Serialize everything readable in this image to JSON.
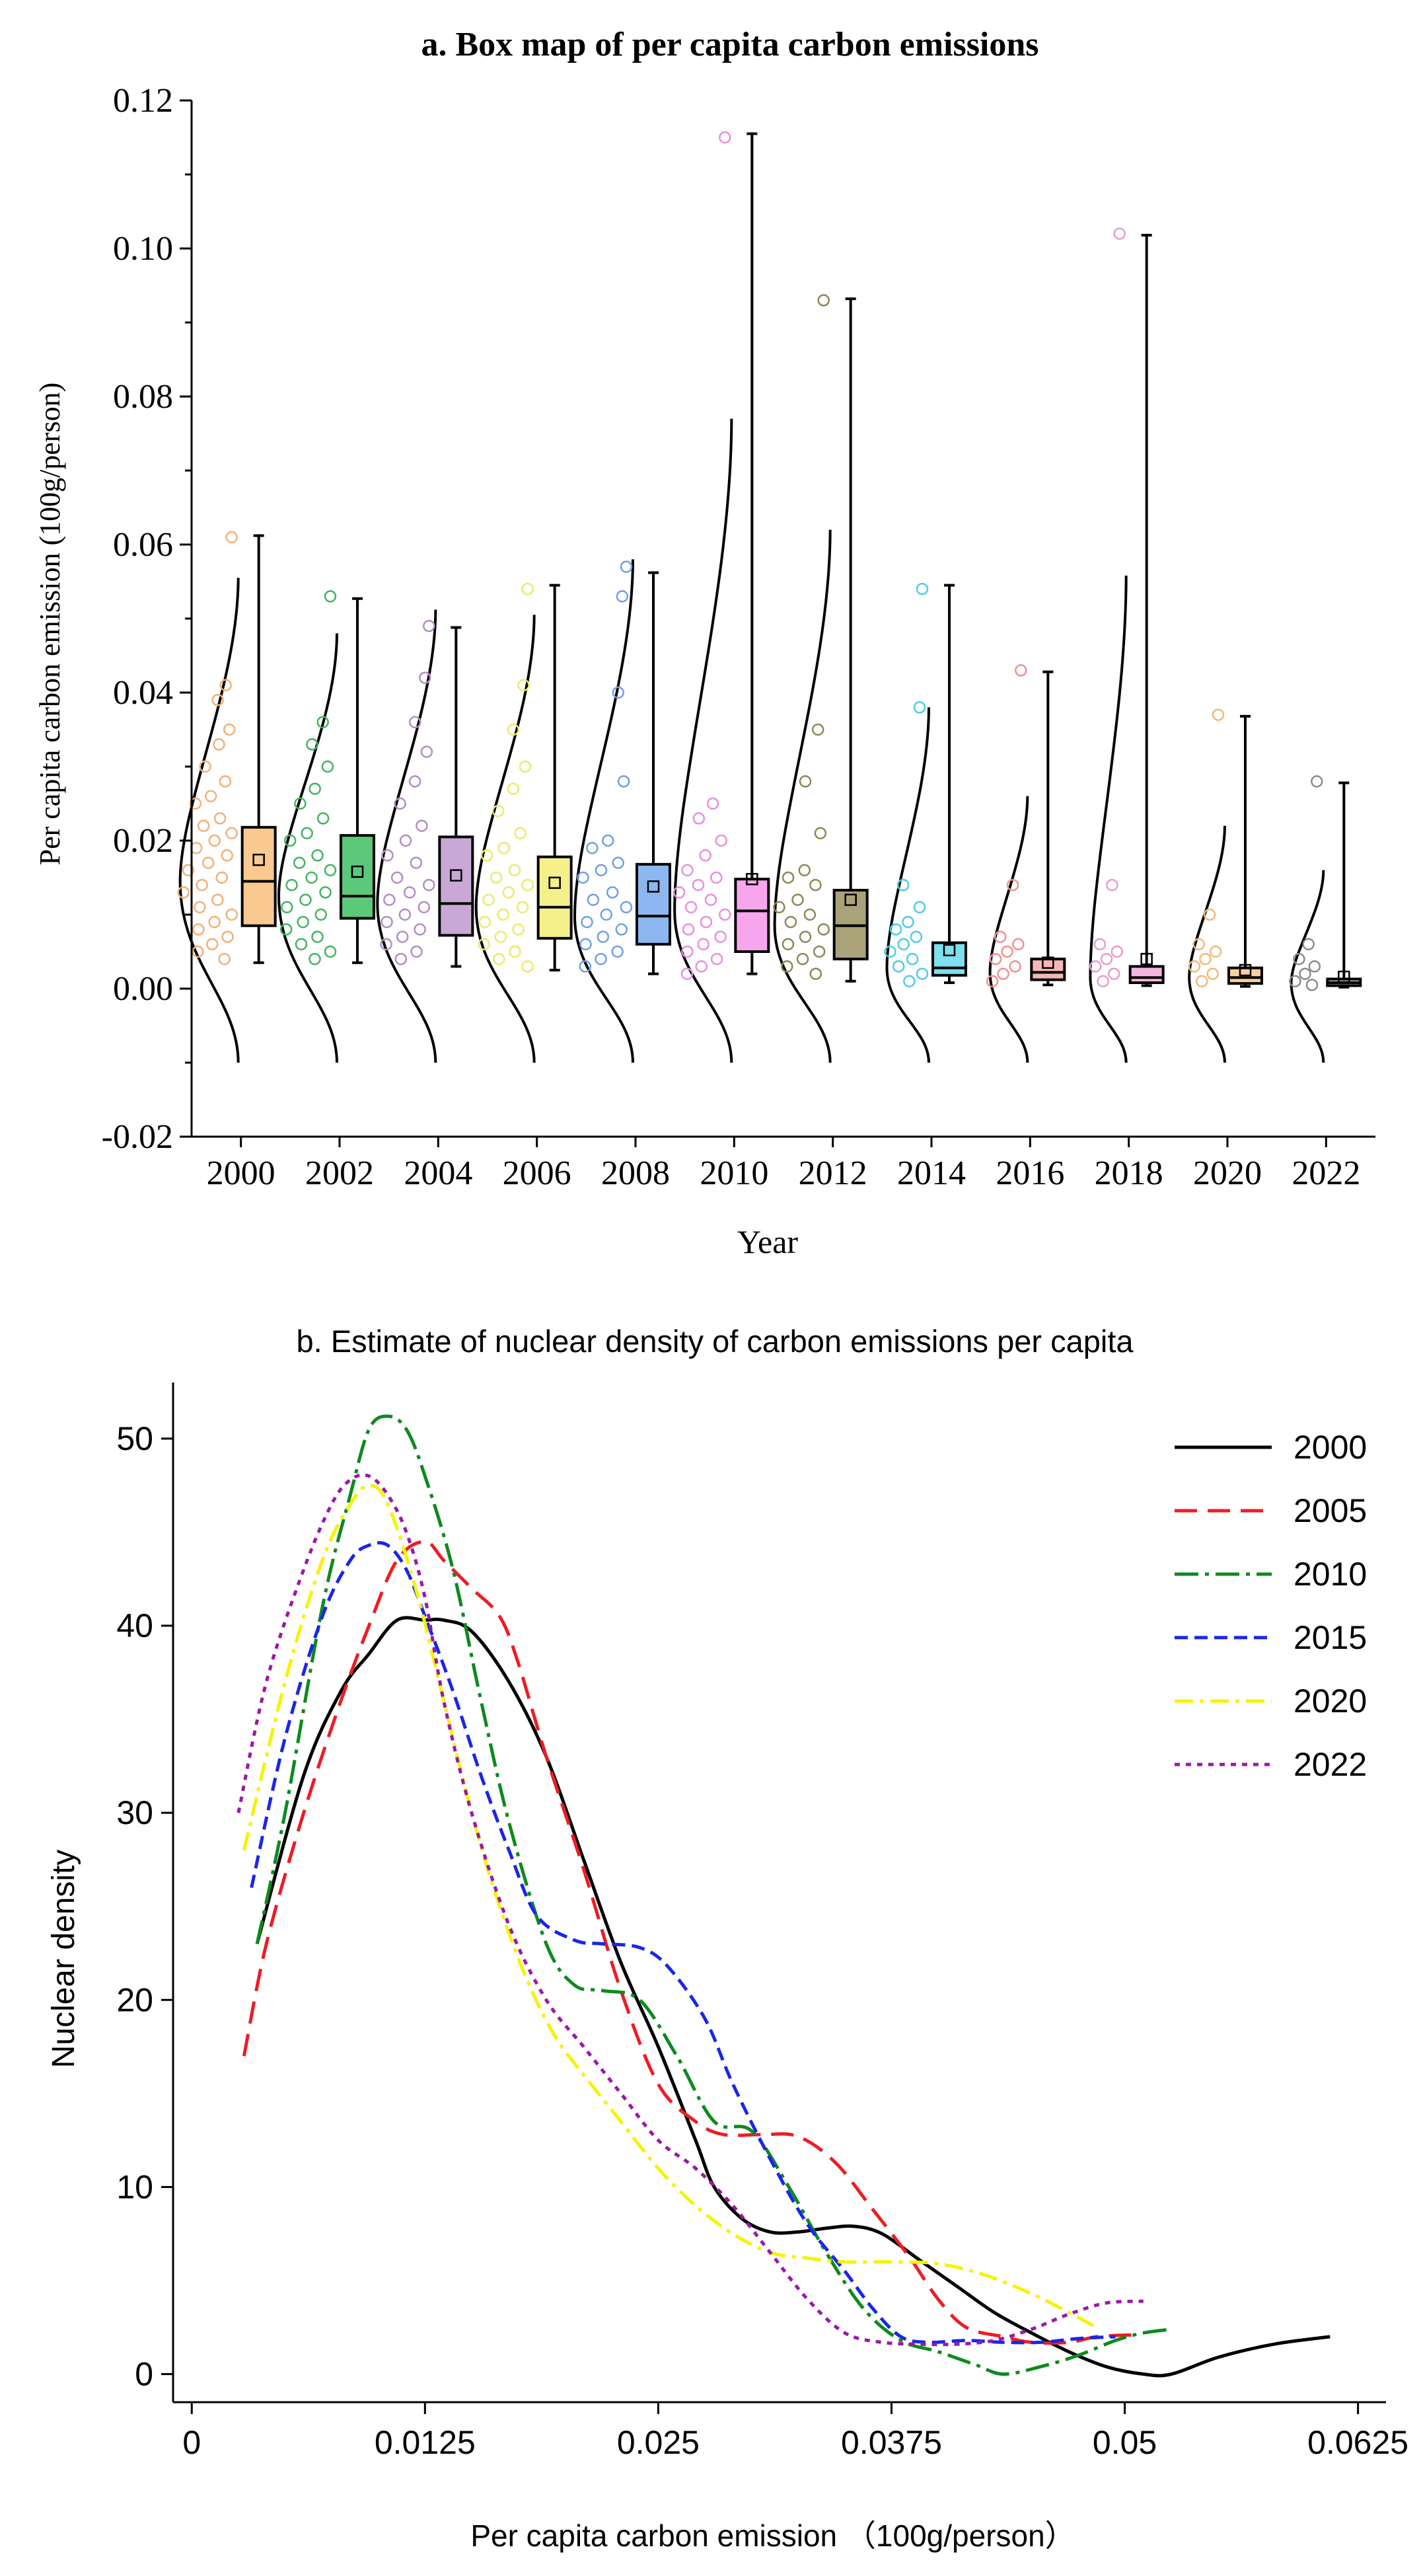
{
  "chart_data": [
    {
      "type": "box",
      "title": "a. Box map of per capita carbon emissions",
      "xlabel": "Year",
      "ylabel": "Per capita carbon emission (100g/person)",
      "ylim": [
        -0.02,
        0.12
      ],
      "yticks": [
        -0.02,
        0.0,
        0.02,
        0.04,
        0.06,
        0.08,
        0.1,
        0.12
      ],
      "ytick_labels": [
        "-0.02",
        "0.00",
        "0.02",
        "0.04",
        "0.06",
        "0.08",
        "0.10",
        "0.12"
      ],
      "categories": [
        "2000",
        "2002",
        "2004",
        "2006",
        "2008",
        "2010",
        "2012",
        "2014",
        "2016",
        "2018",
        "2020",
        "2022"
      ],
      "colors": [
        "#f9c98f",
        "#5cc87a",
        "#c9a8d6",
        "#f5f08a",
        "#8cb7f0",
        "#f7a6ee",
        "#aaa37a",
        "#7ddff0",
        "#f7b6b6",
        "#f2b6dc",
        "#f9cf9c",
        "#b5b5b5"
      ],
      "point_colors": [
        "#f2b078",
        "#43b45f",
        "#b48cc6",
        "#ecea6a",
        "#6f9fe6",
        "#e98ee0",
        "#8f8755",
        "#4fcbe6",
        "#ef9090",
        "#e79ccd",
        "#f3b878",
        "#8c8c8c"
      ],
      "boxes": [
        {
          "q1": 0.0085,
          "median": 0.0145,
          "q3": 0.0218,
          "mean": 0.0174,
          "whisker_low": 0.0035,
          "whisker_high": 0.0612
        },
        {
          "q1": 0.0095,
          "median": 0.0125,
          "q3": 0.0207,
          "mean": 0.0158,
          "whisker_low": 0.0035,
          "whisker_high": 0.0527
        },
        {
          "q1": 0.0072,
          "median": 0.0115,
          "q3": 0.0205,
          "mean": 0.0153,
          "whisker_low": 0.003,
          "whisker_high": 0.0488
        },
        {
          "q1": 0.0068,
          "median": 0.011,
          "q3": 0.0178,
          "mean": 0.0143,
          "whisker_low": 0.0025,
          "whisker_high": 0.0545
        },
        {
          "q1": 0.006,
          "median": 0.0098,
          "q3": 0.0168,
          "mean": 0.0138,
          "whisker_low": 0.002,
          "whisker_high": 0.0562
        },
        {
          "q1": 0.005,
          "median": 0.0105,
          "q3": 0.0148,
          "mean": 0.0148,
          "whisker_low": 0.002,
          "whisker_high": 0.1155
        },
        {
          "q1": 0.004,
          "median": 0.0085,
          "q3": 0.0133,
          "mean": 0.012,
          "whisker_low": 0.001,
          "whisker_high": 0.0932
        },
        {
          "q1": 0.0018,
          "median": 0.0028,
          "q3": 0.0062,
          "mean": 0.0052,
          "whisker_low": 0.0008,
          "whisker_high": 0.0545
        },
        {
          "q1": 0.0012,
          "median": 0.0022,
          "q3": 0.004,
          "mean": 0.0035,
          "whisker_low": 0.0005,
          "whisker_high": 0.0428
        },
        {
          "q1": 0.0008,
          "median": 0.0015,
          "q3": 0.003,
          "mean": 0.004,
          "whisker_low": 0.0004,
          "whisker_high": 0.1018
        },
        {
          "q1": 0.0007,
          "median": 0.0015,
          "q3": 0.0028,
          "mean": 0.0025,
          "whisker_low": 0.0003,
          "whisker_high": 0.0368
        },
        {
          "q1": 0.0004,
          "median": 0.0008,
          "q3": 0.0013,
          "mean": 0.0016,
          "whisker_low": 0.0002,
          "whisker_high": 0.0278
        }
      ],
      "points": [
        [
          0.061,
          0.041,
          0.039,
          0.035,
          0.033,
          0.03,
          0.028,
          0.026,
          0.025,
          0.023,
          0.022,
          0.021,
          0.02,
          0.019,
          0.018,
          0.017,
          0.016,
          0.015,
          0.014,
          0.013,
          0.012,
          0.011,
          0.01,
          0.009,
          0.008,
          0.007,
          0.006,
          0.005,
          0.004
        ],
        [
          0.053,
          0.036,
          0.033,
          0.03,
          0.027,
          0.025,
          0.023,
          0.021,
          0.02,
          0.018,
          0.017,
          0.016,
          0.015,
          0.014,
          0.013,
          0.012,
          0.011,
          0.01,
          0.009,
          0.008,
          0.007,
          0.006,
          0.005,
          0.004
        ],
        [
          0.049,
          0.042,
          0.036,
          0.032,
          0.028,
          0.025,
          0.022,
          0.02,
          0.018,
          0.017,
          0.015,
          0.014,
          0.013,
          0.012,
          0.011,
          0.01,
          0.009,
          0.008,
          0.007,
          0.006,
          0.005,
          0.004
        ],
        [
          0.054,
          0.041,
          0.035,
          0.03,
          0.027,
          0.024,
          0.021,
          0.019,
          0.018,
          0.016,
          0.015,
          0.014,
          0.013,
          0.012,
          0.011,
          0.01,
          0.009,
          0.008,
          0.007,
          0.006,
          0.005,
          0.004,
          0.003
        ],
        [
          0.057,
          0.053,
          0.04,
          0.028,
          0.02,
          0.019,
          0.017,
          0.016,
          0.015,
          0.013,
          0.012,
          0.011,
          0.01,
          0.009,
          0.008,
          0.007,
          0.006,
          0.005,
          0.004,
          0.003
        ],
        [
          0.115,
          0.025,
          0.023,
          0.02,
          0.018,
          0.016,
          0.015,
          0.014,
          0.013,
          0.012,
          0.011,
          0.01,
          0.009,
          0.008,
          0.007,
          0.006,
          0.005,
          0.004,
          0.003,
          0.002
        ],
        [
          0.093,
          0.035,
          0.028,
          0.021,
          0.016,
          0.015,
          0.014,
          0.012,
          0.011,
          0.01,
          0.009,
          0.008,
          0.007,
          0.006,
          0.005,
          0.004,
          0.003,
          0.002
        ],
        [
          0.054,
          0.038,
          0.014,
          0.011,
          0.009,
          0.008,
          0.007,
          0.006,
          0.005,
          0.004,
          0.003,
          0.002,
          0.001
        ],
        [
          0.043,
          0.014,
          0.007,
          0.006,
          0.005,
          0.004,
          0.003,
          0.002,
          0.001
        ],
        [
          0.102,
          0.014,
          0.006,
          0.005,
          0.004,
          0.003,
          0.002,
          0.001
        ],
        [
          0.037,
          0.01,
          0.006,
          0.005,
          0.004,
          0.003,
          0.002,
          0.001
        ],
        [
          0.028,
          0.006,
          0.004,
          0.003,
          0.002,
          0.001,
          0.0005
        ]
      ],
      "density_peak_ticks": [
        0.0555,
        0.048,
        0.0512,
        0.0505,
        0.058,
        0.077,
        0.062,
        0.038,
        0.026,
        0.0558,
        0.022,
        0.016
      ],
      "density_curve_bottom": -0.01
    },
    {
      "type": "line",
      "title": "b. Estimate of nuclear density of carbon emissions per capita",
      "xlabel": "Per capita carbon emission  （100g/person）",
      "ylabel": "Nuclear density",
      "xlim": [
        -0.001,
        0.064
      ],
      "ylim": [
        -1.5,
        53
      ],
      "xticks": [
        0,
        0.0125,
        0.025,
        0.0375,
        0.05,
        0.0625
      ],
      "xtick_labels": [
        "0",
        "0.0125",
        "0.025",
        "0.0375",
        "0.05",
        "0.0625"
      ],
      "yticks": [
        0,
        10,
        20,
        30,
        40,
        50
      ],
      "ytick_labels": [
        "0",
        "10",
        "20",
        "30",
        "40",
        "50"
      ],
      "series": [
        {
          "name": "2000",
          "color": "#000000",
          "dash": "",
          "width": 5,
          "x": [
            0.0035,
            0.006,
            0.008,
            0.0095,
            0.011,
            0.0125,
            0.0135,
            0.015,
            0.017,
            0.019,
            0.021,
            0.023,
            0.025,
            0.027,
            0.028,
            0.0295,
            0.031,
            0.0325,
            0.034,
            0.0355,
            0.037,
            0.039,
            0.041,
            0.043,
            0.045,
            0.047,
            0.049,
            0.051,
            0.0525,
            0.055,
            0.058,
            0.061
          ],
          "y": [
            23,
            32,
            36.5,
            38.5,
            40.3,
            40.3,
            40.3,
            39.7,
            37,
            33,
            27.5,
            22,
            17.5,
            12.5,
            10,
            8.3,
            7.6,
            7.6,
            7.8,
            7.9,
            7.5,
            6.1,
            4.7,
            3.3,
            2.2,
            1.2,
            0.4,
            0,
            0,
            0.9,
            1.6,
            2.0
          ]
        },
        {
          "name": "2005",
          "color": "#ee1c24",
          "dash": "34 16",
          "width": 5,
          "x": [
            0.0028,
            0.004,
            0.006,
            0.008,
            0.0095,
            0.011,
            0.0125,
            0.0135,
            0.015,
            0.0165,
            0.0175,
            0.019,
            0.021,
            0.023,
            0.025,
            0.027,
            0.0285,
            0.0305,
            0.0325,
            0.0345,
            0.0365,
            0.0385,
            0.04,
            0.0415,
            0.0435,
            0.045,
            0.047,
            0.0485,
            0.0505
          ],
          "y": [
            17,
            23,
            30,
            36,
            40,
            43.5,
            44.5,
            43.5,
            42,
            40.5,
            38,
            33,
            27,
            20.5,
            15.5,
            13.5,
            12.8,
            12.8,
            12.7,
            11.3,
            8.8,
            6.2,
            4,
            2.5,
            2,
            1.7,
            1.7,
            2,
            2.1
          ]
        },
        {
          "name": "2010",
          "color": "#0d8a1f",
          "dash": "36 10 6 10",
          "width": 5,
          "x": [
            0.0035,
            0.005,
            0.007,
            0.0085,
            0.0095,
            0.0105,
            0.0115,
            0.0125,
            0.014,
            0.0155,
            0.017,
            0.019,
            0.0205,
            0.022,
            0.024,
            0.026,
            0.028,
            0.03,
            0.032,
            0.034,
            0.036,
            0.038,
            0.04,
            0.042,
            0.0435,
            0.0455,
            0.0475,
            0.0495,
            0.051,
            0.0525
          ],
          "y": [
            23,
            30,
            41,
            47,
            50.5,
            51.2,
            50.5,
            48,
            43,
            36,
            29.5,
            23,
            20.8,
            20.5,
            20,
            17,
            13.5,
            13,
            10,
            6.5,
            3.5,
            1.8,
            1.2,
            0.5,
            0,
            0.4,
            1,
            1.8,
            2.2,
            2.4
          ]
        },
        {
          "name": "2015",
          "color": "#1a26e8",
          "dash": "20 10",
          "width": 5,
          "x": [
            0.0032,
            0.005,
            0.007,
            0.0085,
            0.0095,
            0.0105,
            0.0115,
            0.0125,
            0.014,
            0.0155,
            0.017,
            0.0185,
            0.0205,
            0.022,
            0.024,
            0.0255,
            0.0275,
            0.029,
            0.031,
            0.033,
            0.035,
            0.0365,
            0.038,
            0.0395,
            0.0415,
            0.0435,
            0.0455,
            0.0475,
            0.0495
          ],
          "y": [
            26,
            34,
            40.5,
            43.5,
            44.3,
            44.3,
            43,
            40.5,
            36.5,
            32,
            28,
            24.5,
            23.2,
            23,
            22.8,
            21.8,
            19,
            15.5,
            11.5,
            8,
            5.5,
            3.5,
            2,
            1.7,
            1.8,
            1.7,
            1.7,
            1.9,
            2.0
          ]
        },
        {
          "name": "2020",
          "color": "#f4f400",
          "dash": "28 10 6 10",
          "width": 5,
          "x": [
            0.0028,
            0.005,
            0.007,
            0.0085,
            0.0095,
            0.0105,
            0.012,
            0.0135,
            0.015,
            0.0165,
            0.018,
            0.0195,
            0.021,
            0.023,
            0.025,
            0.027,
            0.029,
            0.031,
            0.033,
            0.035,
            0.0375,
            0.04,
            0.0425,
            0.045,
            0.047,
            0.0485
          ],
          "y": [
            28,
            37,
            43.5,
            46.5,
            47.5,
            46.5,
            42,
            36,
            30,
            25,
            21,
            18,
            16,
            13.5,
            11,
            9,
            7.5,
            6.5,
            6.2,
            6,
            6,
            5.9,
            5.3,
            4.3,
            3.3,
            2.5
          ]
        },
        {
          "name": "2022",
          "color": "#9b18a8",
          "dash": "8 9",
          "width": 5,
          "x": [
            0.0025,
            0.004,
            0.006,
            0.0075,
            0.0085,
            0.0095,
            0.0105,
            0.0115,
            0.0125,
            0.0135,
            0.015,
            0.017,
            0.019,
            0.021,
            0.023,
            0.025,
            0.027,
            0.029,
            0.031,
            0.033,
            0.035,
            0.037,
            0.039,
            0.041,
            0.043,
            0.045,
            0.047,
            0.049,
            0.051
          ],
          "y": [
            30,
            37,
            43,
            46.5,
            47.8,
            48,
            47,
            45,
            41.5,
            36,
            30,
            24,
            20,
            17.5,
            15,
            12.5,
            11,
            9,
            6.5,
            4,
            2.2,
            1.7,
            1.6,
            1.6,
            1.8,
            2.4,
            3.2,
            3.8,
            3.9
          ]
        }
      ]
    }
  ]
}
